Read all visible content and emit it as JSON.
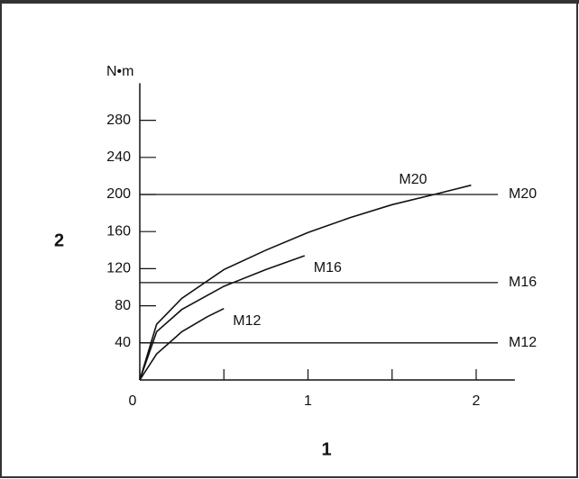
{
  "chart_data": {
    "type": "line",
    "y_unit": "N•m",
    "xlabel": "1",
    "ylabel": "2",
    "xlim": [
      0,
      2.23
    ],
    "ylim": [
      0,
      320
    ],
    "xticks": [
      0,
      1,
      2
    ],
    "x_minor_ticks": [
      0.5,
      1.5
    ],
    "yticks": [
      40,
      80,
      120,
      160,
      200,
      240,
      280
    ],
    "color": "#111111",
    "series": [
      {
        "name": "M20",
        "color": "#111111",
        "x": [
          0,
          0.1,
          0.25,
          0.5,
          0.75,
          1,
          1.25,
          1.5,
          1.75,
          1.97
        ],
        "values": [
          0,
          60,
          88,
          119,
          140,
          159,
          175,
          189,
          200,
          210
        ]
      },
      {
        "name": "M16",
        "color": "#111111",
        "x": [
          0,
          0.1,
          0.25,
          0.5,
          0.75,
          0.98
        ],
        "values": [
          0,
          52,
          76,
          101,
          119,
          134
        ]
      },
      {
        "name": "M12",
        "color": "#111111",
        "x": [
          0,
          0.1,
          0.25,
          0.4,
          0.5
        ],
        "values": [
          0,
          28,
          52,
          68,
          77
        ]
      }
    ],
    "reference_lines": [
      {
        "label": "M20",
        "value": 200
      },
      {
        "label": "M16",
        "value": 105
      },
      {
        "label": "M12",
        "value": 40
      }
    ]
  }
}
